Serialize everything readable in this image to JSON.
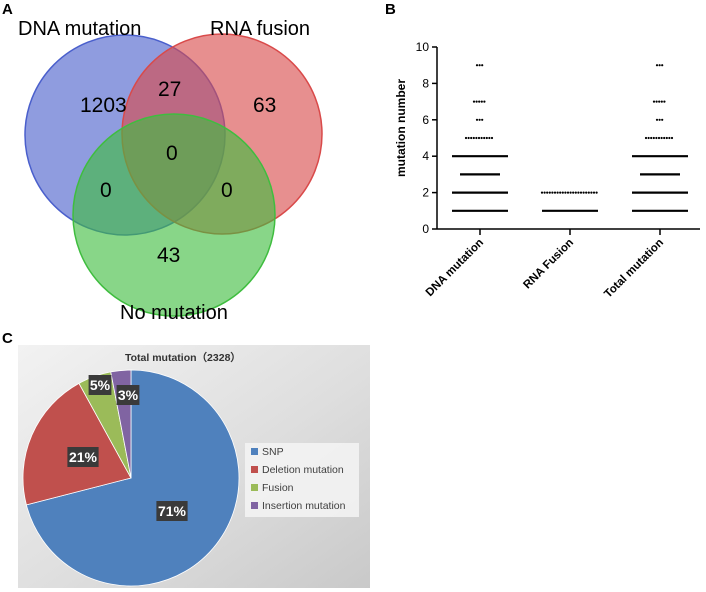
{
  "chart_data": [
    {
      "panel": "A",
      "type": "venn",
      "sets": [
        {
          "name": "DNA mutation",
          "color": "#4a5fcc"
        },
        {
          "name": "RNA fusion",
          "color": "#d94a4a"
        },
        {
          "name": "No mutation",
          "color": "#3fbd3f"
        }
      ],
      "regions": {
        "dna_only": 1203,
        "rna_only": 63,
        "none_only": 43,
        "dna_rna": 27,
        "dna_none": 0,
        "rna_none": 0,
        "all": 0
      }
    },
    {
      "panel": "B",
      "type": "scatter",
      "ylabel": "mutation number",
      "ylim": [
        0,
        10
      ],
      "yticks": [
        0,
        2,
        4,
        6,
        8,
        10
      ],
      "categories": [
        "DNA mutation",
        "RNA Fusion",
        "Total mutation"
      ],
      "groups": [
        {
          "name": "DNA mutation",
          "values": [
            1,
            2,
            3,
            4,
            5,
            6,
            7,
            9
          ],
          "bar_values": [
            1,
            2,
            3,
            4
          ],
          "dot_values": [
            5,
            6,
            7,
            9
          ]
        },
        {
          "name": "RNA Fusion",
          "values": [
            1,
            2
          ],
          "bar_values": [
            1
          ],
          "dot_values": [
            2
          ]
        },
        {
          "name": "Total mutation",
          "values": [
            1,
            2,
            3,
            4,
            5,
            6,
            7,
            9
          ],
          "bar_values": [
            1,
            2,
            3,
            4
          ],
          "dot_values": [
            5,
            6,
            7,
            9
          ]
        }
      ]
    },
    {
      "panel": "C",
      "type": "pie",
      "title": "Total mutation（2328）",
      "slices": [
        {
          "label": "SNP",
          "value": 71,
          "display": "71%",
          "color": "#4f81bd"
        },
        {
          "label": "Deletion mutation",
          "value": 21,
          "display": "21%",
          "color": "#c0504d"
        },
        {
          "label": "Fusion",
          "value": 5,
          "display": "5%",
          "color": "#9bbb59"
        },
        {
          "label": "Insertion mutation",
          "value": 3,
          "display": "3%",
          "color": "#8064a2"
        }
      ]
    }
  ],
  "panels": {
    "a": "A",
    "b": "B",
    "c": "C"
  }
}
